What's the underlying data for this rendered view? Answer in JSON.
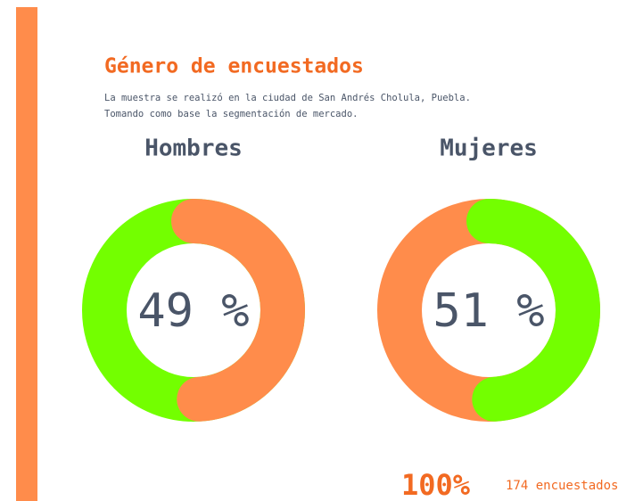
{
  "header": {
    "title": "Género de encuestados",
    "subtitle": [
      "La muestra se realizó en la ciudad de San Andrés Cholula, Puebla.",
      "Tomando como base la segmentación de mercado."
    ]
  },
  "chart_data": [
    {
      "type": "donut",
      "title": "Hombres",
      "values": [
        49,
        51
      ],
      "colors": [
        "#ff8c4b",
        "#73ff00"
      ],
      "center_label": "49 %"
    },
    {
      "type": "donut",
      "title": "Mujeres",
      "values": [
        49,
        51
      ],
      "colors": [
        "#73ff00",
        "#ff8c4b"
      ],
      "center_label": "51 %"
    }
  ],
  "footer": {
    "total": "100%",
    "count": "174 encuestados"
  }
}
